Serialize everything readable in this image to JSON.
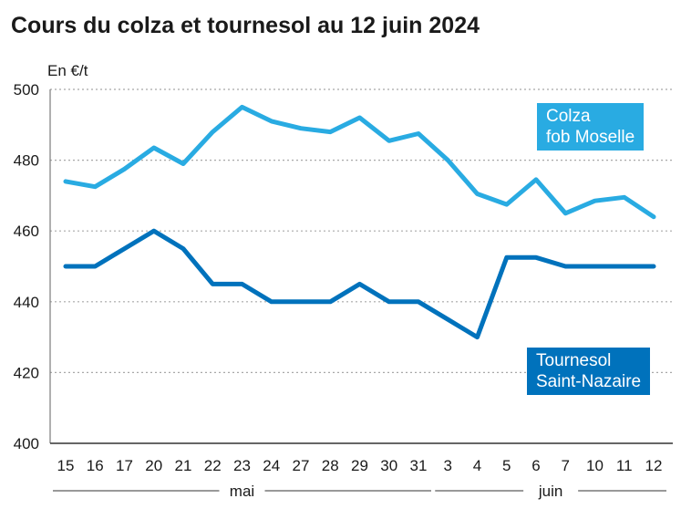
{
  "title": "Cours du colza et tournesol au 12 juin 2024",
  "chart_data": {
    "type": "line",
    "title": "Cours du colza et tournesol au 12 juin 2024",
    "ylabel": "En €/t",
    "xlabel": "",
    "ylim": [
      400,
      500
    ],
    "yticks": [
      400,
      420,
      440,
      460,
      480,
      500
    ],
    "grid": true,
    "categories": [
      "15",
      "16",
      "17",
      "20",
      "21",
      "22",
      "23",
      "24",
      "27",
      "28",
      "29",
      "30",
      "31",
      "3",
      "4",
      "5",
      "6",
      "7",
      "10",
      "11",
      "12"
    ],
    "months": [
      {
        "label": "mai",
        "from": "15",
        "to": "31"
      },
      {
        "label": "juin",
        "from": "3",
        "to": "12"
      }
    ],
    "series": [
      {
        "name": "Colza\nfob Moselle",
        "color": "#29abe2",
        "values": [
          474,
          472.5,
          477.5,
          483.5,
          479,
          488,
          495,
          491,
          489,
          488,
          492,
          485.5,
          487.5,
          480,
          470.5,
          467.5,
          474.5,
          465,
          468.5,
          469.5,
          464
        ]
      },
      {
        "name": "Tournesol\nSaint-Nazaire",
        "color": "#0072bc",
        "values": [
          450,
          450,
          455,
          460,
          455,
          445,
          445,
          440,
          440,
          440,
          445,
          440,
          440,
          435,
          430,
          452.5,
          452.5,
          450,
          450,
          450,
          450
        ]
      }
    ],
    "legend_placement": "inline-right"
  }
}
